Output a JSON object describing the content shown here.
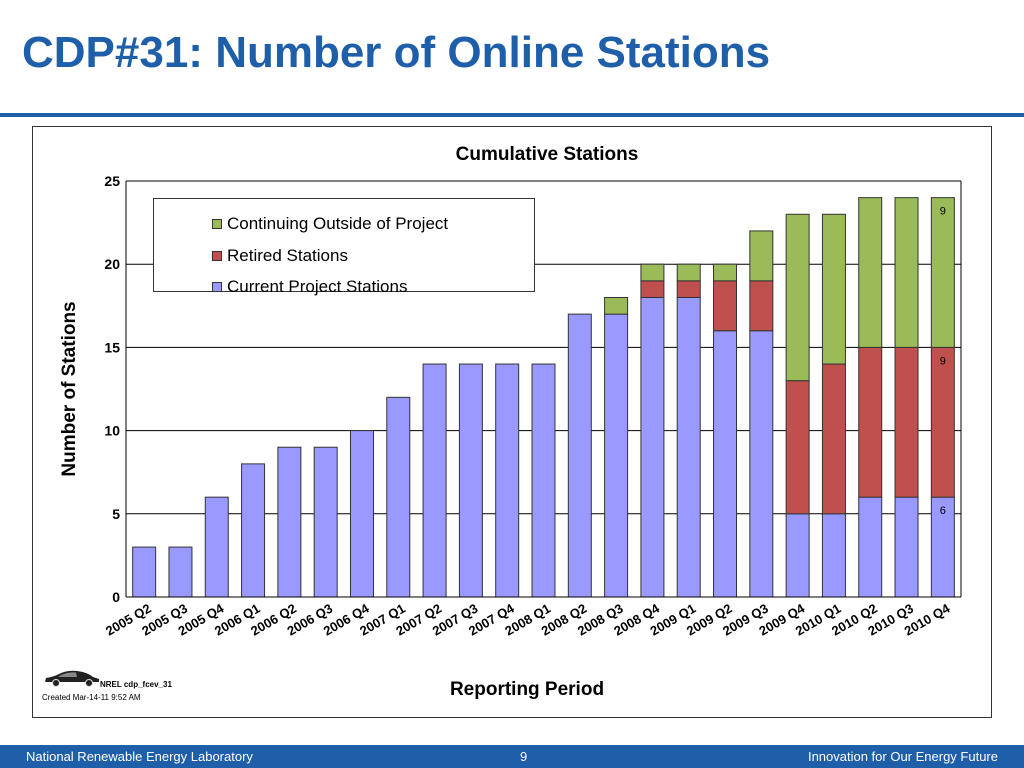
{
  "slide": {
    "title": "CDP#31: Number of Online Stations",
    "credit": "NREL cdp_fcev_31",
    "created": "Created Mar-14-11 9:52 AM"
  },
  "footer": {
    "left": "National Renewable Energy Laboratory",
    "page": "9",
    "right": "Innovation for Our Energy Future"
  },
  "icons": {
    "car": "car-icon"
  },
  "chart_data": {
    "type": "bar",
    "stacked": true,
    "title": "Cumulative Stations",
    "xlabel": "Reporting Period",
    "ylabel": "Number of Stations",
    "ylim": [
      0,
      25
    ],
    "yticks": [
      0,
      5,
      10,
      15,
      20,
      25
    ],
    "grid": true,
    "legend_position": "top-left",
    "categories": [
      "2005 Q2",
      "2005 Q3",
      "2005 Q4",
      "2006 Q1",
      "2006 Q2",
      "2006 Q3",
      "2006 Q4",
      "2007 Q1",
      "2007 Q2",
      "2007 Q3",
      "2007 Q4",
      "2008 Q1",
      "2008 Q2",
      "2008 Q3",
      "2008 Q4",
      "2009 Q1",
      "2009 Q2",
      "2009 Q3",
      "2009 Q4",
      "2010 Q1",
      "2010 Q2",
      "2010 Q3",
      "2010 Q4"
    ],
    "series": [
      {
        "name": "Current Project Stations",
        "color": "#9999ff",
        "values": [
          3,
          3,
          6,
          8,
          9,
          9,
          10,
          12,
          14,
          14,
          14,
          14,
          17,
          17,
          18,
          18,
          16,
          16,
          5,
          5,
          6,
          6,
          6
        ]
      },
      {
        "name": "Retired Stations",
        "color": "#c0504d",
        "values": [
          0,
          0,
          0,
          0,
          0,
          0,
          0,
          0,
          0,
          0,
          0,
          0,
          0,
          0,
          1,
          1,
          3,
          3,
          8,
          9,
          9,
          9,
          9
        ]
      },
      {
        "name": "Continuing Outside of Project",
        "color": "#9bbb59",
        "values": [
          0,
          0,
          0,
          0,
          0,
          0,
          0,
          0,
          0,
          0,
          0,
          0,
          0,
          1,
          1,
          1,
          1,
          3,
          10,
          9,
          9,
          9,
          9
        ]
      }
    ],
    "legend_order": [
      "Continuing Outside of Project",
      "Retired Stations",
      "Current Project Stations"
    ],
    "data_labels": [
      {
        "category": "2010 Q4",
        "series": "Current Project Stations",
        "text": "6"
      },
      {
        "category": "2010 Q4",
        "series": "Retired Stations",
        "text": "9"
      },
      {
        "category": "2010 Q4",
        "series": "Continuing Outside of Project",
        "text": "9"
      }
    ]
  }
}
